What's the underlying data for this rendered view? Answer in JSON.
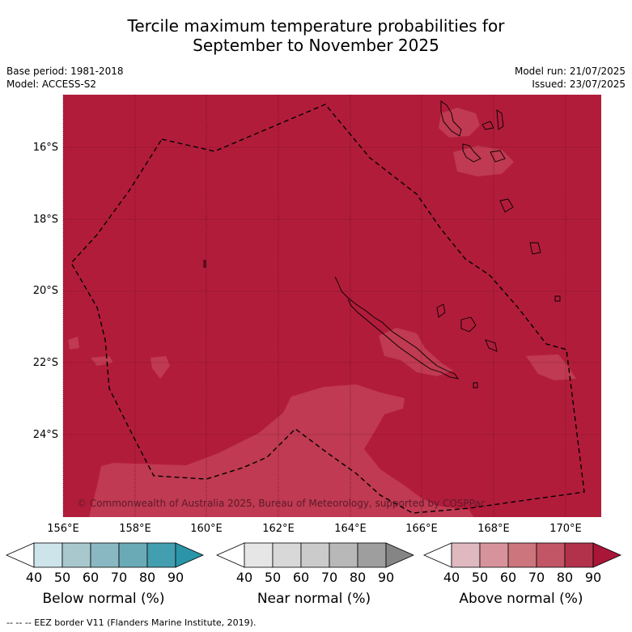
{
  "title_line1": "Tercile maximum temperature probabilities for",
  "title_line2": "September to November 2025",
  "meta": {
    "base_period": "Base period: 1981-2018",
    "model": "Model: ACCESS-S2",
    "model_run": "Model run: 21/07/2025",
    "issued": "Issued: 23/07/2025"
  },
  "map": {
    "latitude_labels": [
      "16°S",
      "18°S",
      "20°S",
      "22°S",
      "24°S"
    ],
    "longitude_labels": [
      "156°E",
      "158°E",
      "160°E",
      "162°E",
      "164°E",
      "166°E",
      "168°E",
      "170°E"
    ],
    "dominant_category": "Above normal",
    "dominant_probability_band": "80-90",
    "copyright": "© Commonwealth of Australia 2025, Bureau of Meteorology, supported by COSPPac",
    "fill_color": "#b21c3b",
    "patch_color": "#bf3a52"
  },
  "colorbars": [
    {
      "label": "Below normal (%)",
      "ticks": [
        "40",
        "50",
        "60",
        "70",
        "80",
        "90"
      ],
      "colors": [
        "#cde4ea",
        "#a8c8ce",
        "#8ab8c2",
        "#6aaab6",
        "#439fb0",
        "#2a95a8"
      ]
    },
    {
      "label": "Near normal (%)",
      "ticks": [
        "40",
        "50",
        "60",
        "70",
        "80",
        "90"
      ],
      "colors": [
        "#e6e6e6",
        "#d8d8d8",
        "#cbcbcb",
        "#b8b8b8",
        "#9e9e9e",
        "#858585"
      ]
    },
    {
      "label": "Above normal (%)",
      "ticks": [
        "40",
        "50",
        "60",
        "70",
        "80",
        "90"
      ],
      "colors": [
        "#e0b8c0",
        "#d7939b",
        "#cc757d",
        "#c25666",
        "#b3324b",
        "#a91637"
      ]
    }
  ],
  "footnote": "--  --  -- EEZ border V11 (Flanders Marine Institute, 2019)."
}
